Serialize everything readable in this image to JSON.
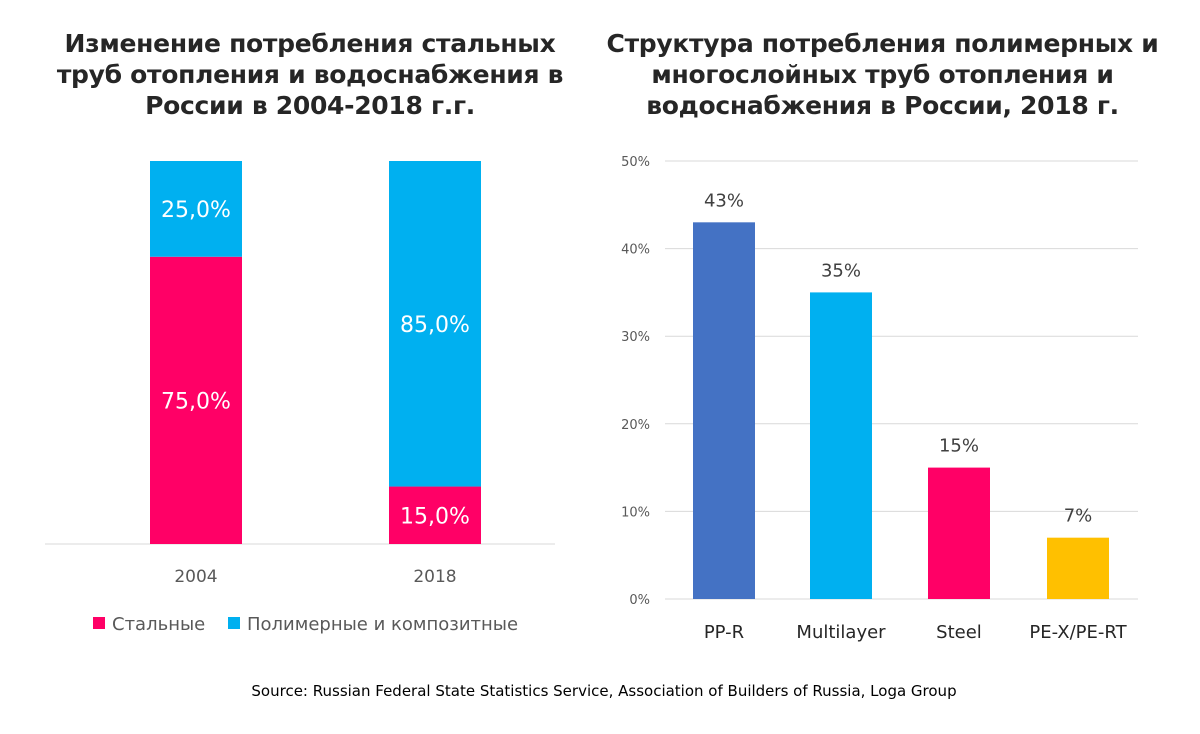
{
  "source": "Source: Russian  Federal State Statistics Service, Association of Builders of Russia, Loga Group",
  "chart_data": [
    {
      "type": "bar",
      "stacked": true,
      "percent_stacked": true,
      "title": "Изменение потребления стальных труб отопления и водоснабжения в России в 2004-2018 г.г.",
      "categories": [
        "2004",
        "2018"
      ],
      "series": [
        {
          "name": "Стальные",
          "values": [
            75.0,
            15.0
          ],
          "labels": [
            "75,0%",
            "15,0%"
          ],
          "color": "#FF0066"
        },
        {
          "name": "Полимерные и композитные",
          "values": [
            25.0,
            85.0
          ],
          "labels": [
            "25,0%",
            "85,0%"
          ],
          "color": "#00B0F0"
        }
      ],
      "legend": "bottom",
      "grid": false
    },
    {
      "type": "bar",
      "title": "Структура потребления полимерных и многослойных  труб отопления и водоснабжения в России, 2018 г.",
      "categories": [
        "PP-R",
        "Multilayer",
        "Steel",
        "PE-X/PE-RT"
      ],
      "values": [
        43,
        35,
        15,
        7
      ],
      "labels": [
        "43%",
        "35%",
        "15%",
        "7%"
      ],
      "colors": [
        "#4472C4",
        "#00B0F0",
        "#FF0066",
        "#FFC000"
      ],
      "ylim": [
        0,
        50
      ],
      "yticks": [
        "0%",
        "10%",
        "20%",
        "30%",
        "40%",
        "50%"
      ],
      "grid": true
    }
  ]
}
